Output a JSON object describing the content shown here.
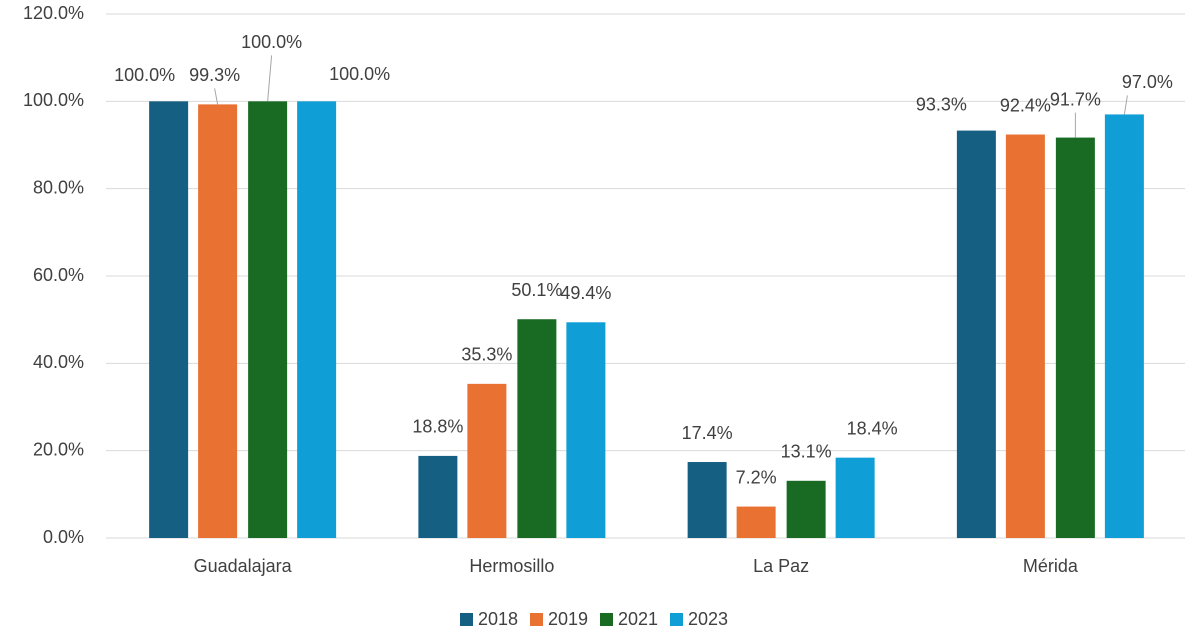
{
  "chart_data": {
    "type": "bar",
    "categories": [
      "Guadalajara",
      "Hermosillo",
      "La Paz",
      "Mérida"
    ],
    "series": [
      {
        "name": "2018",
        "color": "#156082",
        "values": [
          100.0,
          18.8,
          17.4,
          93.3
        ],
        "value_labels": [
          "100.0%",
          "18.8%",
          "17.4%",
          "93.3%"
        ]
      },
      {
        "name": "2019",
        "color": "#e97132",
        "values": [
          99.3,
          35.3,
          7.2,
          92.4
        ],
        "value_labels": [
          "99.3%",
          "35.3%",
          "7.2%",
          "92.4%"
        ]
      },
      {
        "name": "2021",
        "color": "#196b24",
        "values": [
          100.0,
          50.1,
          13.1,
          91.7
        ],
        "value_labels": [
          "100.0%",
          "50.1%",
          "13.1%",
          "91.7%"
        ]
      },
      {
        "name": "2023",
        "color": "#0f9ed5",
        "values": [
          100.0,
          49.4,
          18.4,
          97.0
        ],
        "value_labels": [
          "100.0%",
          "49.4%",
          "18.4%",
          "97.0%"
        ]
      }
    ],
    "ylim": [
      0,
      120
    ],
    "yticks": [
      {
        "value": 0,
        "label": "0.0%"
      },
      {
        "value": 20,
        "label": "20.0%"
      },
      {
        "value": 40,
        "label": "40.0%"
      },
      {
        "value": 60,
        "label": "60.0%"
      },
      {
        "value": 80,
        "label": "80.0%"
      },
      {
        "value": 100,
        "label": "100.0%"
      },
      {
        "value": 120,
        "label": "120.0%"
      }
    ],
    "grid": true,
    "legend": "bottom"
  }
}
